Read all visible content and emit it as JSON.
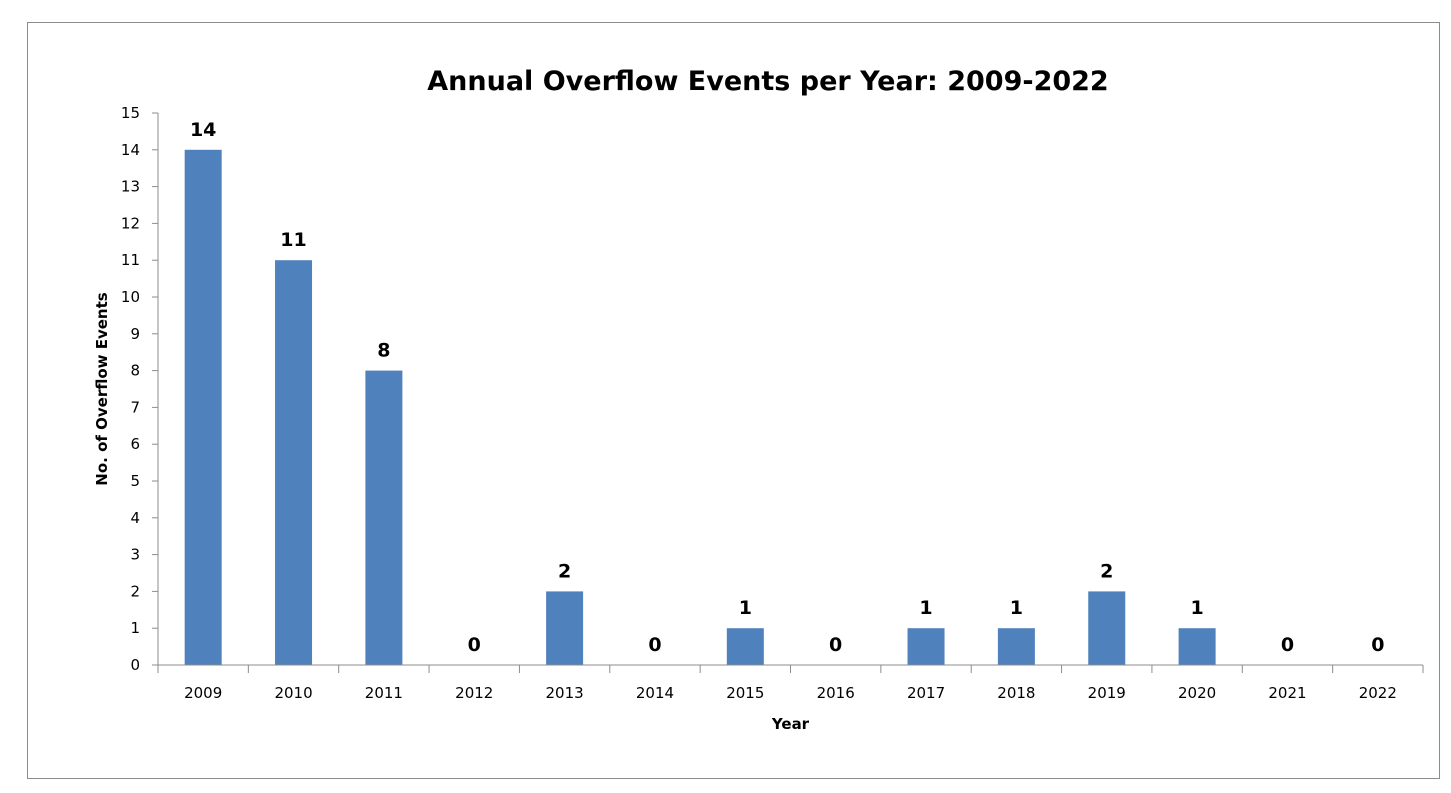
{
  "chart_data": {
    "type": "bar",
    "title": "Annual Overflow Events per Year: 2009-2022",
    "xlabel": "Year",
    "ylabel": "No. of Overflow Events",
    "categories": [
      "2009",
      "2010",
      "2011",
      "2012",
      "2013",
      "2014",
      "2015",
      "2016",
      "2017",
      "2018",
      "2019",
      "2020",
      "2021",
      "2022"
    ],
    "values": [
      14,
      11,
      8,
      0,
      2,
      0,
      1,
      0,
      1,
      1,
      2,
      1,
      0,
      0
    ],
    "data_labels": [
      "14",
      "11",
      "8",
      "0",
      "2",
      "0",
      "1",
      "0",
      "1",
      "1",
      "2",
      "1",
      "0",
      "0"
    ],
    "y_ticks": [
      "0",
      "1",
      "2",
      "3",
      "4",
      "5",
      "6",
      "7",
      "8",
      "9",
      "10",
      "11",
      "12",
      "13",
      "14",
      "15"
    ],
    "ylim": [
      0,
      15
    ],
    "grid": false,
    "legend": "none",
    "bar_color": "#4f81bd"
  }
}
